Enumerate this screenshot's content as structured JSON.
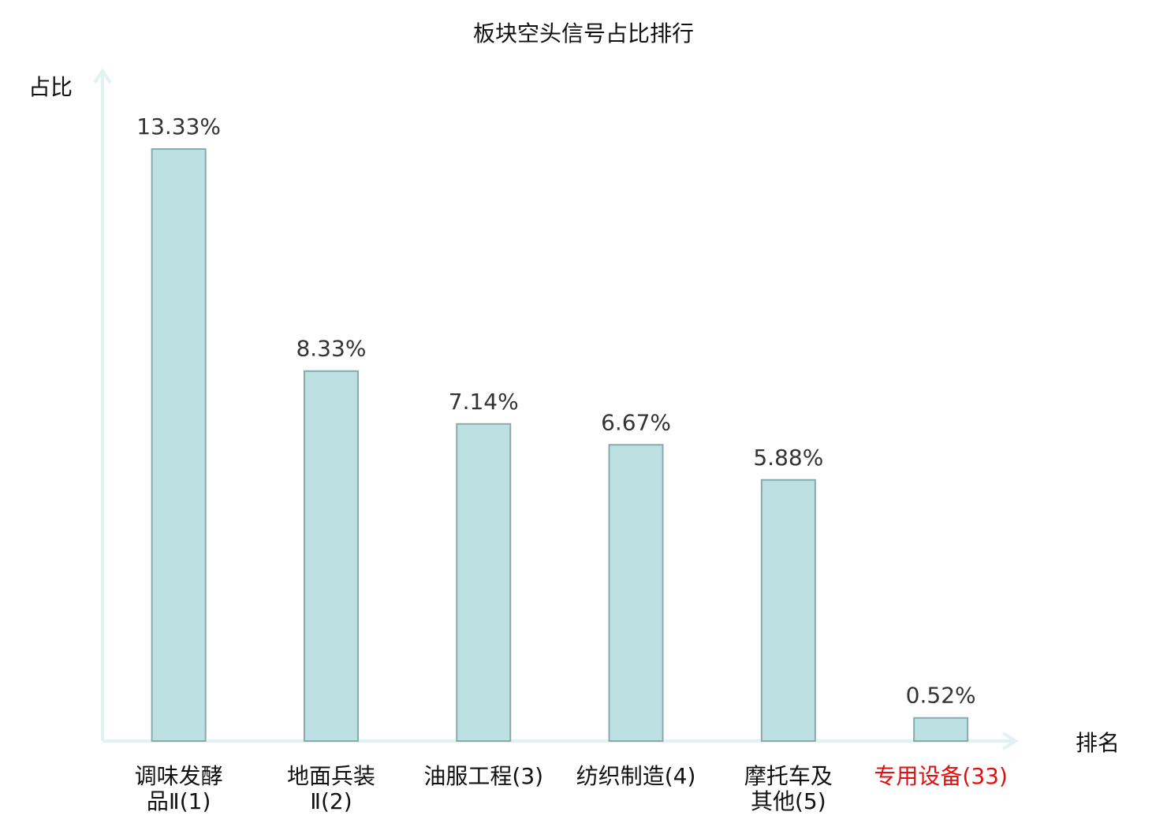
{
  "chart_data": {
    "type": "bar",
    "title": "板块空头信号占比排行",
    "ylabel": "占比",
    "xlabel": "排名",
    "ylim": [
      0,
      15
    ],
    "grid": false,
    "legend": "none",
    "categories": [
      [
        "调味发酵",
        "品Ⅱ(1)"
      ],
      [
        "地面兵装",
        "Ⅱ(2)"
      ],
      [
        "油服工程(3)"
      ],
      [
        "纺织制造(4)"
      ],
      [
        "摩托车及",
        "其他(5)"
      ],
      [
        "专用设备(33)"
      ]
    ],
    "values": [
      13.33,
      8.33,
      7.14,
      6.67,
      5.88,
      0.52
    ],
    "data_labels": [
      "13.33%",
      "8.33%",
      "7.14%",
      "6.67%",
      "5.88%",
      "0.52%"
    ],
    "highlight_index": 5
  },
  "colors": {
    "bar_fill": "#bde0e3",
    "bar_stroke": "#8aa9ac",
    "axis": "#e0f2f1",
    "text": "#333333",
    "highlight_text": "#e01010"
  }
}
